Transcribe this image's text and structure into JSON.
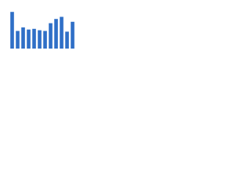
{
  "chart_data": {
    "type": "bar",
    "categories": [
      null,
      null,
      null,
      null,
      null,
      null,
      null,
      null,
      null,
      null,
      null,
      null
    ],
    "values": [
      52,
      25,
      30,
      27,
      28,
      26,
      25,
      36,
      42,
      45,
      24,
      38
    ],
    "color": "#2f6fc7",
    "ylim": [
      0,
      60
    ]
  }
}
